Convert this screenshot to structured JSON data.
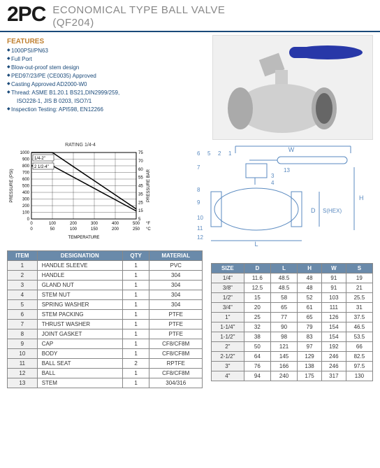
{
  "header": {
    "badge": "2PC",
    "title_line1": "ECONOMICAL TYPE BALL VALVE",
    "title_line2": "(QF204)"
  },
  "features": {
    "heading": "FEATURES",
    "items": [
      "1000PSI/PN63",
      "Full Port",
      "Blow-out-proof stem design",
      "PED97/23/PE (CE0035) Approved",
      "Casting Approved AD2000-W0",
      "Thread: ASME B1.20.1  BS21,DIN2999/259,",
      "ISO228-1, JIS B 0203, ISO7/1",
      "Inspection Testing: API598, EN12266"
    ],
    "indent_idx": [
      6
    ]
  },
  "chart": {
    "title": "RATING  1/4-4",
    "xlabel": "TEMPERATURE",
    "ylabel_left": "PRESSURE (PSI)",
    "ylabel_right": "PRESSURE BAR",
    "x_ticks_f": [
      0,
      100,
      200,
      300,
      400,
      500
    ],
    "x_ticks_c": [
      0,
      50,
      100,
      150,
      200,
      250
    ],
    "x_unit_f": "°F",
    "x_unit_c": "°C",
    "y_ticks_psi": [
      0,
      100,
      200,
      300,
      400,
      500,
      600,
      700,
      800,
      900,
      1000
    ],
    "y_ticks_bar": [
      5,
      15,
      25,
      35,
      45,
      55,
      60,
      70,
      75
    ],
    "series": [
      {
        "label": "1/4-2\"",
        "points": [
          [
            0,
            1000
          ],
          [
            100,
            1000
          ],
          [
            500,
            150
          ]
        ],
        "color": "#000",
        "width": 1.5
      },
      {
        "label": "2 1/2-4\"",
        "points": [
          [
            0,
            800
          ],
          [
            100,
            800
          ],
          [
            500,
            120
          ]
        ],
        "color": "#000",
        "width": 1.5
      }
    ],
    "bg": "#ffffff",
    "grid": "#000",
    "axis": "#000",
    "font_size": 6
  },
  "diagram": {
    "callouts": [
      1,
      2,
      3,
      4,
      5,
      6,
      7,
      8,
      9,
      10,
      11,
      12,
      13
    ],
    "dims": [
      "W",
      "H",
      "S(HEX)",
      "L",
      "D"
    ],
    "line_color": "#5a8ac0"
  },
  "bom": {
    "headers": [
      "ITEM",
      "DESIGNATION",
      "QTY",
      "MATERIAL"
    ],
    "rows": [
      [
        "1",
        "HANDLE SLEEVE",
        "1",
        "PVC"
      ],
      [
        "2",
        "HANDLE",
        "1",
        "304"
      ],
      [
        "3",
        "GLAND NUT",
        "1",
        "304"
      ],
      [
        "4",
        "STEM NUT",
        "1",
        "304"
      ],
      [
        "5",
        "SPRING WASHER",
        "1",
        "304"
      ],
      [
        "6",
        "STEM PACKING",
        "1",
        "PTFE"
      ],
      [
        "7",
        "THRUST WASHER",
        "1",
        "PTFE"
      ],
      [
        "8",
        "JOINT GASKET",
        "1",
        "PTFE"
      ],
      [
        "9",
        "CAP",
        "1",
        "CF8/CF8M"
      ],
      [
        "10",
        "BODY",
        "1",
        "CF8/CF8M"
      ],
      [
        "11",
        "BALL SEAT",
        "2",
        "RPTFE"
      ],
      [
        "12",
        "BALL",
        "1",
        "CF8/CF8M"
      ],
      [
        "13",
        "STEM",
        "1",
        "304/316"
      ]
    ]
  },
  "sizes": {
    "headers": [
      "SIZE",
      "D",
      "L",
      "H",
      "W",
      "S"
    ],
    "rows": [
      [
        "1/4\"",
        "11.6",
        "48.5",
        "48",
        "91",
        "19"
      ],
      [
        "3/8\"",
        "12.5",
        "48.5",
        "48",
        "91",
        "21"
      ],
      [
        "1/2\"",
        "15",
        "58",
        "52",
        "103",
        "25.5"
      ],
      [
        "3/4\"",
        "20",
        "65",
        "61",
        "111",
        "31"
      ],
      [
        "1\"",
        "25",
        "77",
        "65",
        "126",
        "37.5"
      ],
      [
        "1-1/4\"",
        "32",
        "90",
        "79",
        "154",
        "46.5"
      ],
      [
        "1-1/2\"",
        "38",
        "98",
        "83",
        "154",
        "53.5"
      ],
      [
        "2\"",
        "50",
        "121",
        "97",
        "192",
        "66"
      ],
      [
        "2-1/2\"",
        "64",
        "145",
        "129",
        "246",
        "82.5"
      ],
      [
        "3\"",
        "76",
        "166",
        "138",
        "246",
        "97.5"
      ],
      [
        "4\"",
        "94",
        "240",
        "175",
        "317",
        "130"
      ]
    ]
  }
}
